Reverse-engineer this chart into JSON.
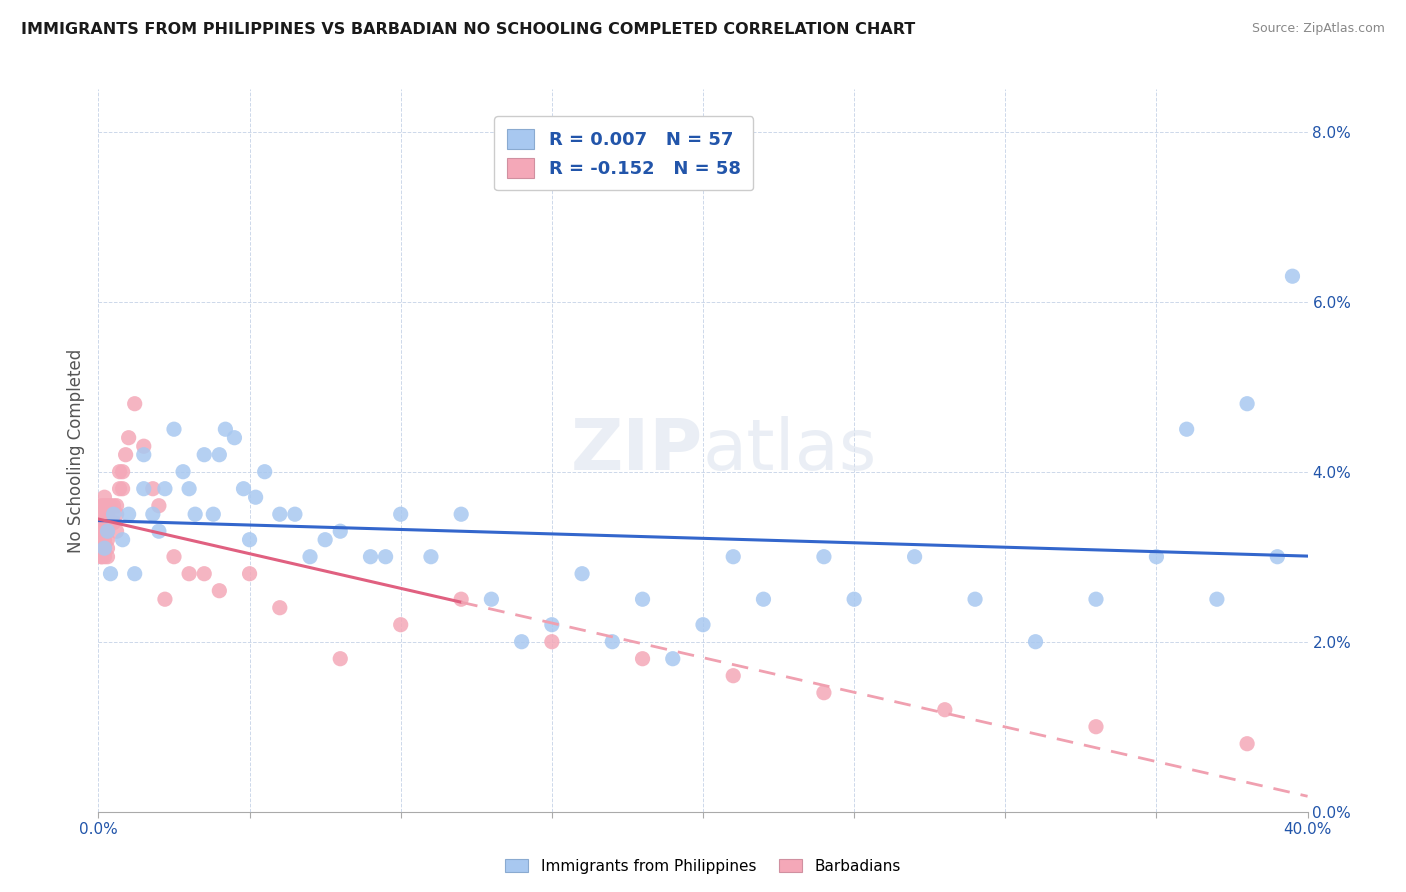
{
  "title": "IMMIGRANTS FROM PHILIPPINES VS BARBADIAN NO SCHOOLING COMPLETED CORRELATION CHART",
  "source": "Source: ZipAtlas.com",
  "ylabel": "No Schooling Completed",
  "xlim": [
    0.0,
    0.4
  ],
  "ylim": [
    0.0,
    0.085
  ],
  "legend_philippines": "Immigrants from Philippines",
  "legend_barbadians": "Barbadians",
  "color_philippines": "#a8c8f0",
  "color_barbadians": "#f4a8b8",
  "color_text_blue": "#2255aa",
  "color_line_philippines": "#3366cc",
  "color_line_barbadians_solid": "#e06080",
  "color_line_barbadians_dashed": "#f0a0b0",
  "watermark": "ZIPatlas",
  "philippines_x": [
    0.002,
    0.003,
    0.004,
    0.005,
    0.008,
    0.01,
    0.012,
    0.015,
    0.015,
    0.018,
    0.02,
    0.022,
    0.025,
    0.028,
    0.03,
    0.032,
    0.035,
    0.038,
    0.04,
    0.042,
    0.045,
    0.048,
    0.05,
    0.052,
    0.055,
    0.06,
    0.065,
    0.07,
    0.075,
    0.08,
    0.09,
    0.095,
    0.1,
    0.11,
    0.12,
    0.13,
    0.14,
    0.15,
    0.16,
    0.17,
    0.18,
    0.19,
    0.2,
    0.21,
    0.22,
    0.24,
    0.25,
    0.27,
    0.29,
    0.31,
    0.33,
    0.35,
    0.36,
    0.37,
    0.38,
    0.39,
    0.395
  ],
  "philippines_y": [
    0.031,
    0.033,
    0.028,
    0.035,
    0.032,
    0.035,
    0.028,
    0.038,
    0.042,
    0.035,
    0.033,
    0.038,
    0.045,
    0.04,
    0.038,
    0.035,
    0.042,
    0.035,
    0.042,
    0.045,
    0.044,
    0.038,
    0.032,
    0.037,
    0.04,
    0.035,
    0.035,
    0.03,
    0.032,
    0.033,
    0.03,
    0.03,
    0.035,
    0.03,
    0.035,
    0.025,
    0.02,
    0.022,
    0.028,
    0.02,
    0.025,
    0.018,
    0.022,
    0.03,
    0.025,
    0.03,
    0.025,
    0.03,
    0.025,
    0.02,
    0.025,
    0.03,
    0.045,
    0.025,
    0.048,
    0.03,
    0.063
  ],
  "barbadians_x": [
    0.001,
    0.001,
    0.001,
    0.001,
    0.001,
    0.001,
    0.001,
    0.001,
    0.001,
    0.002,
    0.002,
    0.002,
    0.002,
    0.002,
    0.002,
    0.002,
    0.002,
    0.002,
    0.003,
    0.003,
    0.003,
    0.003,
    0.003,
    0.003,
    0.004,
    0.004,
    0.005,
    0.005,
    0.006,
    0.006,
    0.006,
    0.007,
    0.007,
    0.008,
    0.008,
    0.009,
    0.01,
    0.012,
    0.015,
    0.018,
    0.02,
    0.022,
    0.025,
    0.03,
    0.035,
    0.04,
    0.05,
    0.06,
    0.08,
    0.1,
    0.12,
    0.15,
    0.18,
    0.21,
    0.24,
    0.28,
    0.33,
    0.38
  ],
  "barbadians_y": [
    0.03,
    0.03,
    0.031,
    0.031,
    0.032,
    0.033,
    0.034,
    0.035,
    0.036,
    0.03,
    0.031,
    0.031,
    0.032,
    0.033,
    0.034,
    0.035,
    0.036,
    0.037,
    0.03,
    0.031,
    0.032,
    0.033,
    0.035,
    0.036,
    0.034,
    0.036,
    0.034,
    0.036,
    0.033,
    0.035,
    0.036,
    0.038,
    0.04,
    0.038,
    0.04,
    0.042,
    0.044,
    0.048,
    0.043,
    0.038,
    0.036,
    0.025,
    0.03,
    0.028,
    0.028,
    0.026,
    0.028,
    0.024,
    0.018,
    0.022,
    0.025,
    0.02,
    0.018,
    0.016,
    0.014,
    0.012,
    0.01,
    0.008
  ]
}
